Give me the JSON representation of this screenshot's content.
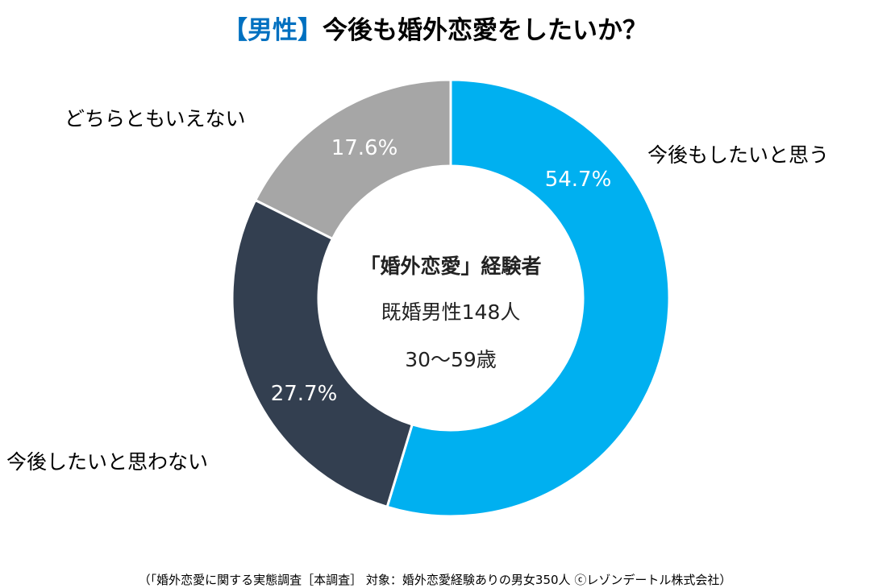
{
  "header": {
    "title_accent": "【男性】",
    "title_main": "今後も婚外恋愛をしたいか？"
  },
  "chart_data": {
    "type": "pie",
    "donut": true,
    "categories": [
      "今後もしたいと思う",
      "今後したいと思わない",
      "どちらともいえない"
    ],
    "values": [
      54.7,
      27.7,
      17.6
    ],
    "value_labels": [
      "54.7%",
      "27.7%",
      "17.6%"
    ],
    "colors": [
      "#00b0f0",
      "#333f50",
      "#a6a6a6"
    ],
    "legend": "none",
    "center_text": [
      "「婚外恋愛」経験者",
      "既婚男性148人",
      "30～59歳"
    ]
  },
  "footer": {
    "note": "（「婚外恋愛に関する実態調査［本調査］ 対象：婚外恋愛経験ありの男女350人 ⓒレゾンデートル株式会社）"
  }
}
